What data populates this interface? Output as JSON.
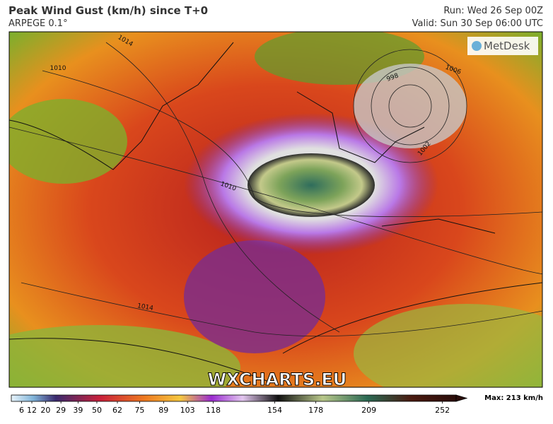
{
  "header": {
    "title": "Peak Wind Gust (km/h) since T+0",
    "model": "ARPEGE 0.1°",
    "run": "Run: Wed 26 Sep 00Z",
    "valid": "Valid: Sun 30 Sep 06:00 UTC"
  },
  "map": {
    "brand": "MetDesk",
    "watermark": "WXCHARTS.EU",
    "isobar_labels": [
      "1014",
      "1010",
      "998",
      "1006",
      "1002",
      "1010",
      "1014"
    ]
  },
  "colorbar": {
    "range": [
      0,
      260
    ],
    "ticks": [
      6,
      12,
      20,
      29,
      39,
      50,
      62,
      75,
      89,
      103,
      118,
      154,
      178,
      209,
      252
    ],
    "max_label": "Max: 213 km/h"
  }
}
